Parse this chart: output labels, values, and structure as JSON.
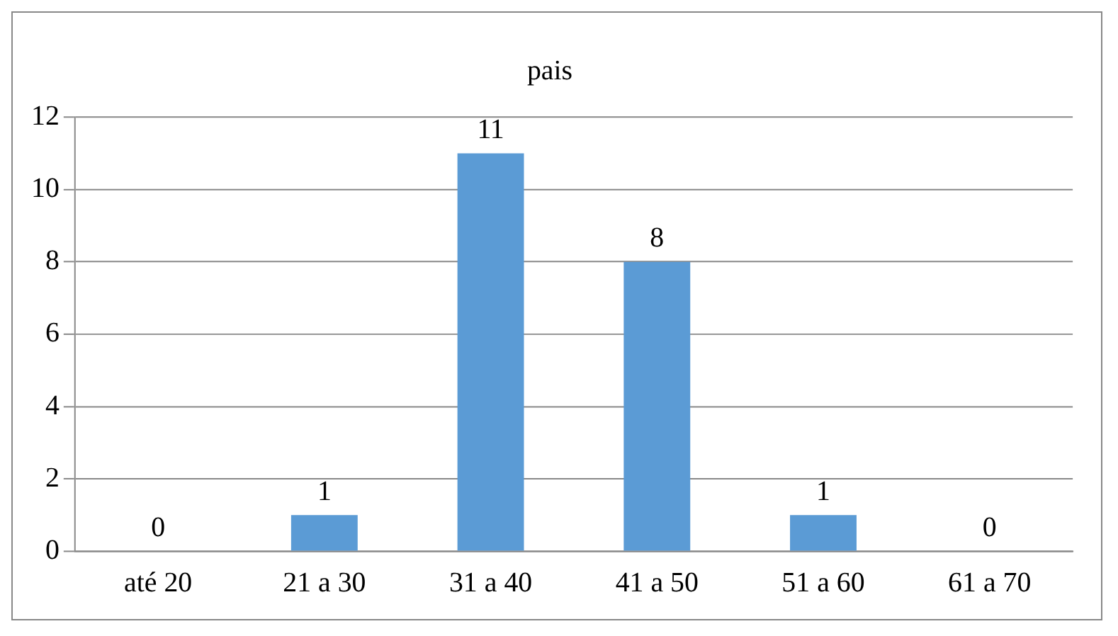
{
  "chart_data": {
    "type": "bar",
    "title": "pais",
    "categories": [
      "até 20",
      "21 a 30",
      "31 a 40",
      "41 a 50",
      "51 a 60",
      "61 a 70"
    ],
    "values": [
      0,
      1,
      11,
      8,
      1,
      0
    ],
    "color": "#5b9bd5",
    "ylim": [
      0,
      12
    ],
    "yticks": [
      0,
      2,
      4,
      6,
      8,
      10,
      12
    ],
    "grid": "y",
    "data_labels": true,
    "legend": false
  }
}
